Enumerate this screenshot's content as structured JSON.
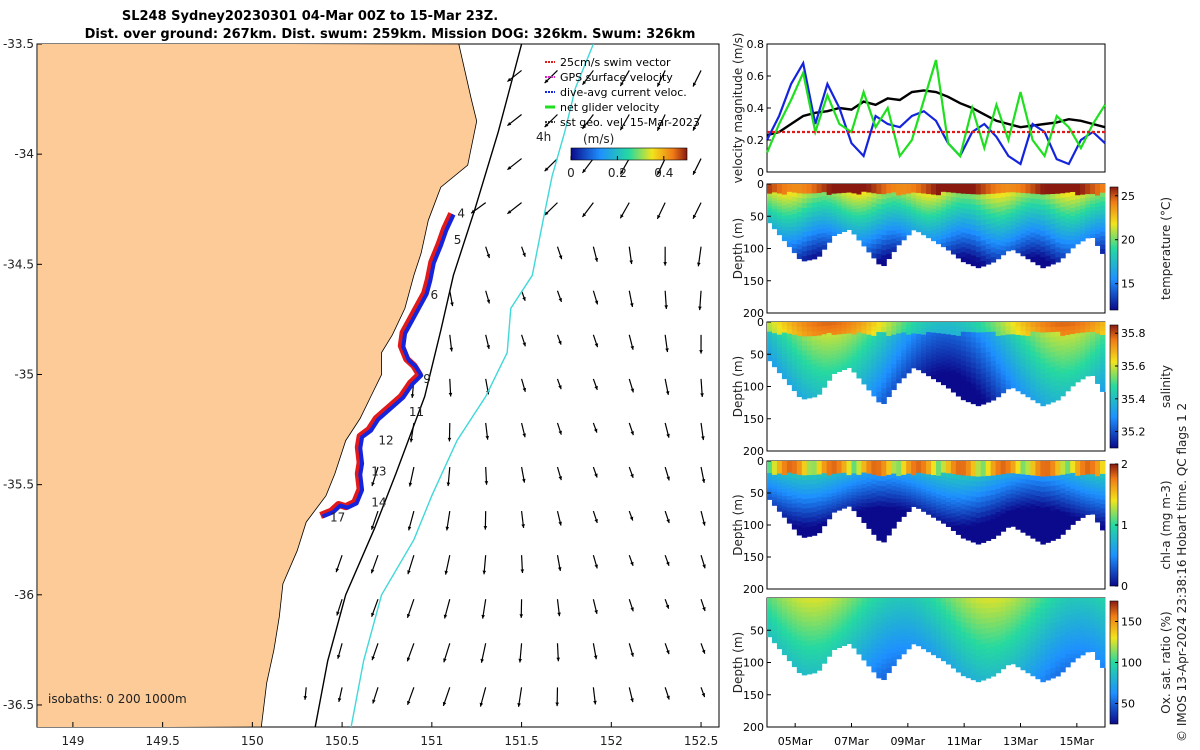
{
  "title": {
    "line1": "SL248 Sydney20230301 04-Mar 00Z to 15-Mar 23Z.",
    "line2": "Dist. over ground: 267km. Dist. swum: 259km. Mission DOG: 326km. Swum: 326km"
  },
  "footer_text": "© IMOS 13-Apr-2024 23:38:16 Hobart time. QC flags 1  2",
  "colors": {
    "land": "#fdcb98",
    "track_swim": "#e0191b",
    "track_current": "#1424dc",
    "gps": "#e020d0",
    "net": "#1ee01e",
    "sst_geo": "#000000",
    "contour200": "#000000",
    "contour1000": "#40d8d8"
  },
  "chart_data": [
    {
      "type": "map",
      "title": "",
      "xlim": [
        148.8,
        152.6
      ],
      "ylim": [
        -36.6,
        -33.5
      ],
      "x_ticks": [
        149,
        149.5,
        150,
        150.5,
        151,
        151.5,
        152,
        152.5
      ],
      "x_tick_labels": [
        "149",
        "149.5",
        "150",
        "150.5",
        "151",
        "151.5",
        "152",
        "152.5"
      ],
      "y_ticks": [
        -33.5,
        -34,
        -34.5,
        -35,
        -35.5,
        -36,
        -36.5
      ],
      "y_tick_labels": [
        "-33.5",
        "-34",
        "-34.5",
        "-35",
        "-35.5",
        "-36",
        "-36.5"
      ],
      "legend_entries": [
        "25cm/s swim vector",
        "GPS surface velocity",
        "dive-avg current veloc.",
        "net glider velocity",
        "sst geo. vel. 15-Mar-2023"
      ],
      "legend_placement": "top-right",
      "colorbar": {
        "label": "(m/s)",
        "range": [
          0,
          0.5
        ],
        "ticks": [
          0,
          0.2,
          0.4
        ],
        "tick_labels": [
          "0",
          "0.2",
          "0.4"
        ]
      },
      "annotation_4h": "4h",
      "isobath_label": "isobaths: 0   200  1000m",
      "track_day_labels": [
        {
          "text": "4",
          "lon": 151.12,
          "lat": -34.27
        },
        {
          "text": "5",
          "lon": 151.1,
          "lat": -34.39
        },
        {
          "text": "6",
          "lon": 150.97,
          "lat": -34.64
        },
        {
          "text": "9",
          "lon": 150.93,
          "lat": -35.02
        },
        {
          "text": "11",
          "lon": 150.85,
          "lat": -35.17
        },
        {
          "text": "12",
          "lon": 150.68,
          "lat": -35.3
        },
        {
          "text": "13",
          "lon": 150.64,
          "lat": -35.44
        },
        {
          "text": "14",
          "lon": 150.64,
          "lat": -35.58
        },
        {
          "text": "17",
          "lon": 150.41,
          "lat": -35.65
        }
      ],
      "track": [
        [
          151.11,
          -34.27
        ],
        [
          151.07,
          -34.34
        ],
        [
          151.04,
          -34.41
        ],
        [
          151.0,
          -34.49
        ],
        [
          150.98,
          -34.57
        ],
        [
          150.96,
          -34.63
        ],
        [
          150.92,
          -34.69
        ],
        [
          150.88,
          -34.75
        ],
        [
          150.84,
          -34.81
        ],
        [
          150.83,
          -34.87
        ],
        [
          150.86,
          -34.93
        ],
        [
          150.9,
          -34.96
        ],
        [
          150.93,
          -35.0
        ],
        [
          150.88,
          -35.04
        ],
        [
          150.83,
          -35.1
        ],
        [
          150.76,
          -35.15
        ],
        [
          150.69,
          -35.2
        ],
        [
          150.65,
          -35.25
        ],
        [
          150.6,
          -35.28
        ],
        [
          150.59,
          -35.33
        ],
        [
          150.6,
          -35.4
        ],
        [
          150.59,
          -35.45
        ],
        [
          150.6,
          -35.52
        ],
        [
          150.57,
          -35.58
        ],
        [
          150.52,
          -35.6
        ],
        [
          150.48,
          -35.59
        ],
        [
          150.44,
          -35.62
        ],
        [
          150.38,
          -35.64
        ]
      ],
      "coastline": [
        [
          151.15,
          -33.5
        ],
        [
          151.22,
          -33.75
        ],
        [
          151.25,
          -33.85
        ],
        [
          151.2,
          -34.05
        ],
        [
          151.05,
          -34.15
        ],
        [
          150.98,
          -34.3
        ],
        [
          150.94,
          -34.45
        ],
        [
          150.9,
          -34.55
        ],
        [
          150.85,
          -34.7
        ],
        [
          150.78,
          -34.82
        ],
        [
          150.72,
          -34.9
        ],
        [
          150.72,
          -35.0
        ],
        [
          150.66,
          -35.1
        ],
        [
          150.6,
          -35.2
        ],
        [
          150.52,
          -35.3
        ],
        [
          150.46,
          -35.45
        ],
        [
          150.41,
          -35.55
        ],
        [
          150.3,
          -35.67
        ],
        [
          150.25,
          -35.8
        ],
        [
          150.17,
          -35.95
        ],
        [
          150.15,
          -36.1
        ],
        [
          150.12,
          -36.25
        ],
        [
          150.08,
          -36.4
        ],
        [
          150.05,
          -36.6
        ]
      ],
      "isobath_200": [
        [
          151.5,
          -33.5
        ],
        [
          151.37,
          -33.9
        ],
        [
          151.24,
          -34.25
        ],
        [
          151.12,
          -34.55
        ],
        [
          151.05,
          -34.8
        ],
        [
          150.96,
          -35.1
        ],
        [
          150.8,
          -35.45
        ],
        [
          150.68,
          -35.7
        ],
        [
          150.52,
          -36.0
        ],
        [
          150.42,
          -36.3
        ],
        [
          150.35,
          -36.6
        ]
      ],
      "isobath_1000": [
        [
          151.9,
          -33.5
        ],
        [
          151.8,
          -33.7
        ],
        [
          151.74,
          -33.9
        ],
        [
          151.67,
          -34.1
        ],
        [
          151.62,
          -34.3
        ],
        [
          151.56,
          -34.55
        ],
        [
          151.44,
          -34.7
        ],
        [
          151.42,
          -34.9
        ],
        [
          151.3,
          -35.1
        ],
        [
          151.14,
          -35.3
        ],
        [
          151.0,
          -35.55
        ],
        [
          150.9,
          -35.75
        ],
        [
          150.72,
          -36.0
        ],
        [
          150.62,
          -36.3
        ],
        [
          150.55,
          -36.6
        ]
      ],
      "vector_field_units": "m/s"
    },
    {
      "type": "line",
      "title": "",
      "ylabel": "velocity magnitude (m/s)",
      "ylim": [
        0,
        0.8
      ],
      "y_ticks": [
        0,
        0.2,
        0.4,
        0.6,
        0.8
      ],
      "y_tick_labels": [
        "0",
        "0.2",
        "0.4",
        "0.6",
        "0.8"
      ],
      "xlim": [
        0,
        12
      ],
      "series": [
        {
          "color": "#000000",
          "values": [
            0.23,
            0.25,
            0.3,
            0.35,
            0.37,
            0.38,
            0.4,
            0.39,
            0.44,
            0.42,
            0.46,
            0.45,
            0.5,
            0.51,
            0.5,
            0.47,
            0.43,
            0.4,
            0.36,
            0.32,
            0.3,
            0.28,
            0.29,
            0.3,
            0.31,
            0.33,
            0.32,
            0.3,
            0.28
          ]
        },
        {
          "color": "#1424dc",
          "values": [
            0.2,
            0.35,
            0.55,
            0.68,
            0.3,
            0.55,
            0.4,
            0.18,
            0.1,
            0.35,
            0.3,
            0.28,
            0.35,
            0.38,
            0.32,
            0.18,
            0.1,
            0.25,
            0.3,
            0.22,
            0.1,
            0.05,
            0.3,
            0.25,
            0.08,
            0.05,
            0.2,
            0.25,
            0.18
          ]
        },
        {
          "color": "#1ee01e",
          "values": [
            0.12,
            0.3,
            0.45,
            0.62,
            0.25,
            0.48,
            0.3,
            0.25,
            0.5,
            0.28,
            0.4,
            0.1,
            0.2,
            0.45,
            0.7,
            0.18,
            0.1,
            0.4,
            0.15,
            0.42,
            0.2,
            0.5,
            0.2,
            0.1,
            0.35,
            0.28,
            0.15,
            0.3,
            0.42
          ]
        },
        {
          "color": "#e0191b",
          "values": [
            0.25,
            0.25,
            0.25,
            0.25,
            0.25,
            0.25,
            0.25,
            0.25,
            0.25,
            0.25,
            0.25,
            0.25,
            0.25,
            0.25,
            0.25,
            0.25,
            0.25,
            0.25,
            0.25,
            0.25,
            0.25,
            0.25,
            0.25,
            0.25,
            0.25,
            0.25,
            0.25,
            0.25,
            0.25
          ]
        }
      ]
    },
    {
      "type": "heatmap",
      "title": "",
      "ylabel": "Depth (m)",
      "ylim": [
        200,
        0
      ],
      "y_ticks": [
        0,
        50,
        100,
        150,
        200
      ],
      "y_tick_labels": [
        "0",
        "50",
        "100",
        "150",
        "200"
      ],
      "colorbar": {
        "label": "temperature (°C)",
        "range": [
          12,
          26
        ],
        "ticks": [
          15,
          20,
          25
        ],
        "tick_labels": [
          "15",
          "20",
          "25"
        ]
      },
      "depth_profile": [
        60,
        90,
        120,
        115,
        80,
        70,
        100,
        130,
        95,
        70,
        85,
        100,
        120,
        130,
        120,
        100,
        115,
        130,
        120,
        95,
        80,
        120
      ]
    },
    {
      "type": "heatmap",
      "title": "",
      "ylabel": "Depth (m)",
      "ylim": [
        200,
        0
      ],
      "y_ticks": [
        0,
        50,
        100,
        150,
        200
      ],
      "y_tick_labels": [
        "0",
        "50",
        "100",
        "150",
        "200"
      ],
      "colorbar": {
        "label": "salinity",
        "range": [
          35.1,
          35.85
        ],
        "ticks": [
          35.2,
          35.4,
          35.6,
          35.8
        ],
        "tick_labels": [
          "35.2",
          "35.4",
          "35.6",
          "35.8"
        ]
      },
      "depth_profile": [
        60,
        90,
        120,
        115,
        80,
        70,
        100,
        130,
        95,
        70,
        85,
        100,
        120,
        130,
        120,
        100,
        115,
        130,
        120,
        95,
        80,
        120
      ]
    },
    {
      "type": "heatmap",
      "title": "",
      "ylabel": "Depth (m)",
      "ylim": [
        200,
        0
      ],
      "y_ticks": [
        0,
        50,
        100,
        150,
        200
      ],
      "y_tick_labels": [
        "0",
        "50",
        "100",
        "150",
        "200"
      ],
      "colorbar": {
        "label": "chl-a (mg m-3)",
        "range": [
          0,
          2
        ],
        "ticks": [
          0,
          1,
          2
        ],
        "tick_labels": [
          "0",
          "1",
          "2"
        ]
      },
      "depth_profile": [
        60,
        90,
        120,
        115,
        80,
        70,
        100,
        130,
        95,
        70,
        85,
        100,
        120,
        130,
        120,
        100,
        115,
        130,
        120,
        95,
        80,
        120
      ]
    },
    {
      "type": "heatmap",
      "title": "",
      "ylabel": "Depth (m)",
      "ylim": [
        200,
        0
      ],
      "y_ticks": [
        50,
        100,
        150,
        200
      ],
      "y_tick_labels": [
        "50",
        "100",
        "150",
        "200"
      ],
      "colorbar": {
        "label": "Ox. sat. ratio (%)",
        "range": [
          25,
          175
        ],
        "ticks": [
          50,
          100,
          150
        ],
        "tick_labels": [
          "50",
          "100",
          "150"
        ]
      },
      "x_ticks": [
        1,
        3,
        5,
        7,
        9,
        11
      ],
      "x_tick_labels": [
        "05Mar",
        "07Mar",
        "09Mar",
        "11Mar",
        "13Mar",
        "15Mar"
      ],
      "depth_profile": [
        60,
        90,
        120,
        115,
        80,
        70,
        100,
        130,
        95,
        70,
        85,
        100,
        120,
        130,
        120,
        100,
        115,
        130,
        120,
        95,
        80,
        120
      ]
    }
  ]
}
